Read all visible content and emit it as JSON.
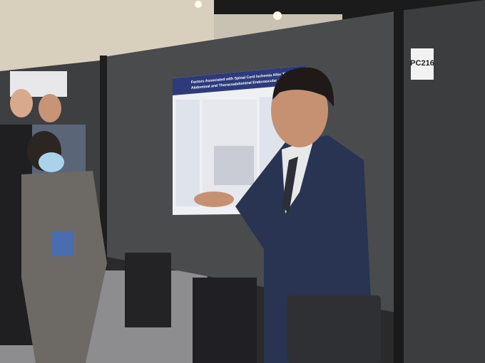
{
  "poster": {
    "title_line_1": "Factors Associated with Spinal Cord Ischemia After Thoracic,",
    "title_line_2": "Abdominal and Thoracoabdominal Endovascular Aortic Repair"
  },
  "board": {
    "number": "PC216"
  }
}
